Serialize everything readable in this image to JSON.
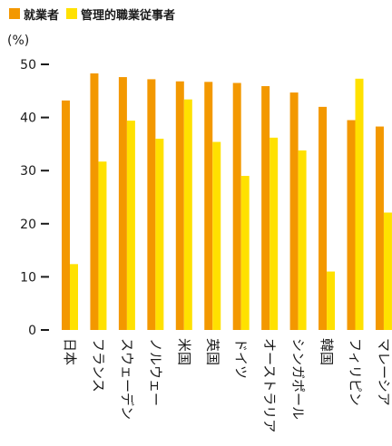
{
  "chart_data": {
    "type": "bar",
    "legend": {
      "placement": "top-left",
      "items": [
        {
          "label": "就業者",
          "color": "#F39800"
        },
        {
          "label": "管理的職業従事者",
          "color": "#FFE100"
        }
      ]
    },
    "unit": "(%)",
    "ylim": [
      0,
      50
    ],
    "yticks": [
      "0",
      "10",
      "20",
      "30",
      "40",
      "50"
    ],
    "categories": [
      "日本",
      "フランス",
      "スウェーデン",
      "ノルウェー",
      "米国",
      "英国",
      "ドイツ",
      "オーストラリア",
      "シンガポール",
      "韓国",
      "フィリピン",
      "マレーシア"
    ],
    "series": [
      {
        "name": "就業者",
        "color": "#F39800",
        "values": [
          43.2,
          48.3,
          47.6,
          47.2,
          46.8,
          46.7,
          46.5,
          45.9,
          44.7,
          42.0,
          39.5,
          38.3
        ]
      },
      {
        "name": "管理的職業従事者",
        "color": "#FFE100",
        "values": [
          12.4,
          31.7,
          39.4,
          36.0,
          43.4,
          35.4,
          29.0,
          36.2,
          33.8,
          11.0,
          47.3,
          22.1
        ]
      }
    ],
    "grid": false
  }
}
